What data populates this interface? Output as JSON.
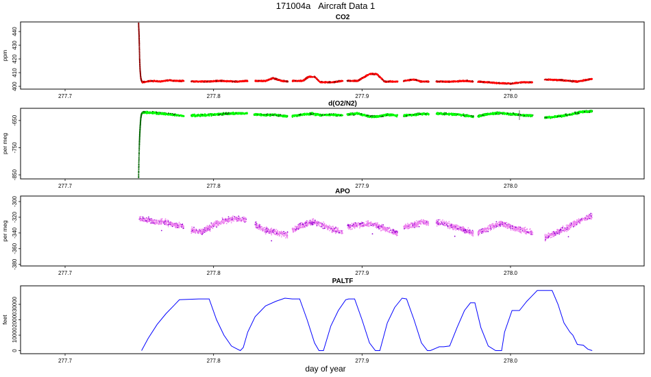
{
  "header": {
    "run_id": "171004a",
    "title": "Aircraft Data 1"
  },
  "x_axis_title": "day of year",
  "chart_data": [
    {
      "type": "scatter",
      "title": "CO2",
      "ylabel": "ppm",
      "xlim": [
        277.67,
        278.09
      ],
      "ylim": [
        398,
        447
      ],
      "xticks": [
        "277.7",
        "277.8",
        "277.9",
        "278.0"
      ],
      "yticks": [
        "400",
        "410",
        "420",
        "430",
        "440"
      ],
      "colors": {
        "main": "#ff0000",
        "dark": "#8b0000"
      },
      "segments": [
        {
          "x": [
            277.7495,
            277.7498,
            277.75,
            277.7502,
            277.7505,
            277.751,
            277.7515,
            277.752
          ],
          "y": [
            446,
            438,
            430,
            420,
            412,
            406,
            404,
            403
          ]
        },
        {
          "x": [
            277.752,
            277.758,
            277.764,
            277.77,
            277.776,
            277.78
          ],
          "y": [
            403,
            404,
            403.5,
            404.5,
            404,
            404
          ]
        },
        {
          "x": [
            277.785,
            277.795,
            277.805,
            277.815,
            277.823
          ],
          "y": [
            403.5,
            403.5,
            404,
            403.5,
            404
          ]
        },
        {
          "x": [
            277.828,
            277.835,
            277.84,
            277.846,
            277.85
          ],
          "y": [
            404,
            404,
            406,
            404,
            403.5
          ]
        },
        {
          "x": [
            277.853,
            277.86,
            277.864,
            277.868,
            277.872,
            277.88,
            277.887
          ],
          "y": [
            404,
            404,
            407,
            407,
            403,
            403,
            404
          ]
        },
        {
          "x": [
            277.89,
            277.897,
            277.905,
            277.91,
            277.915,
            277.924
          ],
          "y": [
            404,
            404,
            409,
            409,
            403.5,
            403.5
          ]
        },
        {
          "x": [
            277.928,
            277.935,
            277.94,
            277.945
          ],
          "y": [
            404,
            405,
            403.5,
            403.5
          ]
        },
        {
          "x": [
            277.95,
            277.96,
            277.97,
            277.975
          ],
          "y": [
            403.5,
            403.5,
            404,
            403.5
          ]
        },
        {
          "x": [
            277.978,
            277.99,
            278.0,
            278.008,
            278.015
          ],
          "y": [
            403.5,
            402.5,
            402,
            403,
            403
          ]
        },
        {
          "x": [
            278.023,
            278.035,
            278.045,
            278.055
          ],
          "y": [
            405,
            404.5,
            403.5,
            405.5
          ]
        }
      ]
    },
    {
      "type": "scatter",
      "title": "d(O2/N2)",
      "ylabel": "per meg",
      "xlim": [
        277.67,
        278.09
      ],
      "ylim": [
        -865,
        -605
      ],
      "xticks": [
        "277.7",
        "277.8",
        "277.9",
        "278.0"
      ],
      "yticks": [
        "-850",
        "-750",
        "-650"
      ],
      "colors": {
        "main": "#00ff00",
        "dark": "#006400",
        "gray": "#888888"
      },
      "segments": [
        {
          "x": [
            277.7495,
            277.7497,
            277.75,
            277.7503,
            277.7506,
            277.751,
            277.7515,
            277.7522
          ],
          "y": [
            -860,
            -800,
            -740,
            -700,
            -670,
            -640,
            -625,
            -620
          ]
        },
        {
          "x": [
            277.752,
            277.76,
            277.768,
            277.775,
            277.78
          ],
          "y": [
            -620,
            -622,
            -626,
            -630,
            -633
          ]
        },
        {
          "x": [
            277.785,
            277.795,
            277.805,
            277.815,
            277.823
          ],
          "y": [
            -632,
            -630,
            -626,
            -624,
            -624
          ]
        },
        {
          "x": [
            277.827,
            277.835,
            277.84,
            277.845,
            277.85
          ],
          "y": [
            -628,
            -630,
            -628,
            -632,
            -634
          ]
        },
        {
          "x": [
            277.853,
            277.86,
            277.866,
            277.872,
            277.88,
            277.887
          ],
          "y": [
            -634,
            -628,
            -625,
            -630,
            -628,
            -632
          ]
        },
        {
          "x": [
            277.89,
            277.897,
            277.904,
            277.91,
            277.917,
            277.924
          ],
          "y": [
            -628,
            -624,
            -634,
            -636,
            -628,
            -632
          ]
        },
        {
          "x": [
            277.928,
            277.935,
            277.94,
            277.945
          ],
          "y": [
            -632,
            -629,
            -626,
            -626
          ]
        },
        {
          "x": [
            277.95,
            277.958,
            277.965,
            277.97,
            277.975
          ],
          "y": [
            -624,
            -626,
            -628,
            -632,
            -636
          ]
        },
        {
          "x": [
            277.978,
            277.985,
            277.993,
            278.0,
            278.008,
            278.015
          ],
          "y": [
            -634,
            -626,
            -622,
            -626,
            -630,
            -632
          ]
        },
        {
          "x": [
            278.023,
            278.03,
            278.04,
            278.048,
            278.055
          ],
          "y": [
            -640,
            -636,
            -628,
            -618,
            -616
          ]
        }
      ]
    },
    {
      "type": "scatter",
      "title": "APO",
      "ylabel": "per meg",
      "xlim": [
        277.67,
        278.09
      ],
      "ylim": [
        -382,
        -293
      ],
      "xticks": [
        "277.7",
        "277.8",
        "277.9",
        "278.0"
      ],
      "yticks": [
        "-380",
        "-360",
        "-340",
        "-320",
        "-300"
      ],
      "colors": {
        "main": "#ee82ee",
        "dark": "#9400d3"
      },
      "segments": [
        {
          "x": [
            277.75,
            277.755,
            277.76,
            277.765,
            277.77,
            277.775,
            277.78
          ],
          "y": [
            -322,
            -323,
            -326,
            -325,
            -328,
            -330,
            -332
          ]
        },
        {
          "x": [
            277.785,
            277.792,
            277.8,
            277.808,
            277.815,
            277.822
          ],
          "y": [
            -337,
            -339,
            -330,
            -324,
            -322,
            -323
          ]
        },
        {
          "x": [
            277.828,
            277.835,
            277.843,
            277.85
          ],
          "y": [
            -330,
            -336,
            -340,
            -343
          ]
        },
        {
          "x": [
            277.853,
            277.86,
            277.867,
            277.874,
            277.88,
            277.887
          ],
          "y": [
            -337,
            -330,
            -326,
            -330,
            -336,
            -339
          ]
        },
        {
          "x": [
            277.89,
            277.897,
            277.905,
            277.912,
            277.918,
            277.924
          ],
          "y": [
            -332,
            -330,
            -328,
            -332,
            -336,
            -340
          ]
        },
        {
          "x": [
            277.928,
            277.935,
            277.94,
            277.945
          ],
          "y": [
            -332,
            -330,
            -326,
            -327
          ]
        },
        {
          "x": [
            277.95,
            277.958,
            277.966,
            277.975
          ],
          "y": [
            -326,
            -330,
            -334,
            -341
          ]
        },
        {
          "x": [
            277.978,
            277.985,
            277.993,
            278.0,
            278.008,
            278.015
          ],
          "y": [
            -340,
            -334,
            -328,
            -332,
            -336,
            -340
          ]
        },
        {
          "x": [
            278.023,
            278.03,
            278.038,
            278.045,
            278.055
          ],
          "y": [
            -346,
            -340,
            -334,
            -326,
            -318
          ]
        }
      ]
    },
    {
      "type": "line",
      "title": "PALTF",
      "ylabel": "feet",
      "xlim": [
        277.67,
        278.09
      ],
      "ylim": [
        -2000,
        42000
      ],
      "xticks": [
        "277.7",
        "277.8",
        "277.9",
        "278.0"
      ],
      "yticks": [
        "0",
        "10000",
        "20000",
        "30000"
      ],
      "colors": {
        "line": "#0000ff"
      },
      "x": [
        277.7515,
        277.756,
        277.762,
        277.768,
        277.773,
        277.777,
        277.79,
        277.797,
        277.802,
        277.807,
        277.812,
        277.816,
        277.818,
        277.82,
        277.823,
        277.828,
        277.835,
        277.842,
        277.848,
        277.853,
        277.858,
        277.863,
        277.868,
        277.871,
        277.874,
        277.879,
        277.884,
        277.889,
        277.891,
        277.895,
        277.9,
        277.905,
        277.909,
        277.912,
        277.917,
        277.922,
        277.927,
        277.93,
        277.935,
        277.94,
        277.944,
        277.946,
        277.952,
        277.955,
        277.959,
        277.964,
        277.969,
        277.973,
        277.976,
        277.98,
        277.985,
        277.99,
        277.994,
        277.996,
        278.001,
        278.006,
        278.011,
        278.014,
        278.018,
        278.023,
        278.028,
        278.032,
        278.036,
        278.04,
        278.042,
        278.045,
        278.049,
        278.052,
        278.055
      ],
      "y": [
        0,
        8000,
        17000,
        24000,
        29000,
        33000,
        33500,
        33500,
        20000,
        10000,
        3000,
        1000,
        0,
        2000,
        12000,
        22000,
        29000,
        32000,
        34000,
        33500,
        33500,
        20000,
        5000,
        0,
        0,
        16000,
        26000,
        33000,
        33500,
        33500,
        20000,
        5000,
        0,
        0,
        18000,
        28000,
        34000,
        33500,
        20000,
        5000,
        0,
        0,
        2500,
        2500,
        3000,
        15000,
        26000,
        31000,
        31000,
        15000,
        3000,
        0,
        0,
        12000,
        26000,
        26000,
        32000,
        35000,
        39000,
        39000,
        39000,
        30000,
        18000,
        12000,
        10000,
        4000,
        3500,
        1000,
        0
      ]
    }
  ]
}
